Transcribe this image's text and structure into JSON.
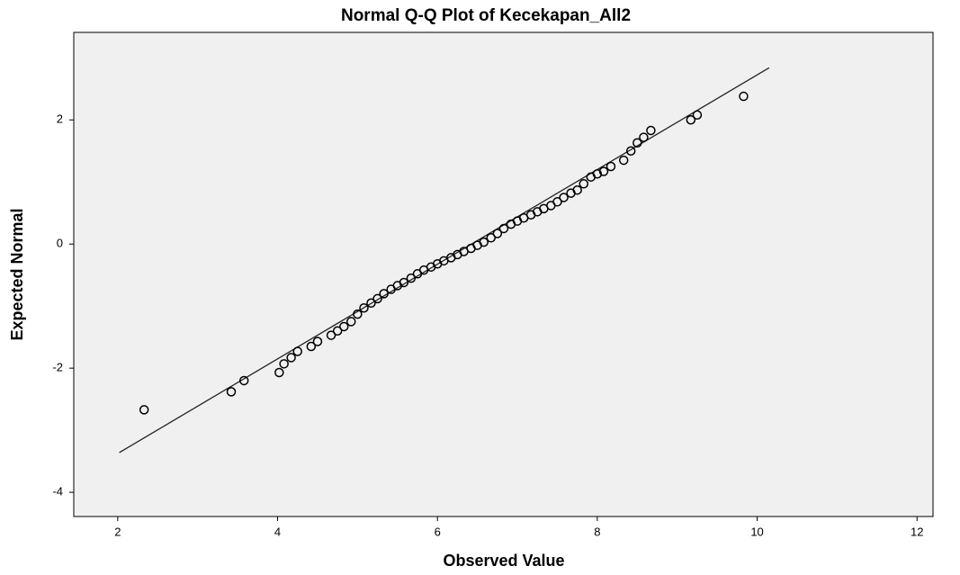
{
  "chart_data": {
    "type": "scatter",
    "title": "Normal Q-Q Plot of Kecekapan_All2",
    "xlabel": "Observed Value",
    "ylabel": "Expected Normal",
    "x": [
      2.33,
      3.42,
      3.58,
      4.02,
      4.08,
      4.17,
      4.25,
      4.42,
      4.5,
      4.67,
      4.75,
      4.83,
      4.92,
      5.0,
      5.08,
      5.17,
      5.25,
      5.33,
      5.42,
      5.5,
      5.58,
      5.67,
      5.75,
      5.83,
      5.92,
      6.0,
      6.08,
      6.17,
      6.25,
      6.33,
      6.42,
      6.5,
      6.58,
      6.67,
      6.75,
      6.83,
      6.92,
      7.0,
      7.08,
      7.17,
      7.25,
      7.33,
      7.42,
      7.5,
      7.58,
      7.67,
      7.75,
      7.83,
      7.92,
      8.0,
      8.08,
      8.17,
      8.33,
      8.42,
      8.5,
      8.58,
      8.67,
      9.17,
      9.25,
      9.83
    ],
    "values": [
      -2.67,
      -2.38,
      -2.2,
      -2.07,
      -1.93,
      -1.83,
      -1.73,
      -1.65,
      -1.57,
      -1.47,
      -1.4,
      -1.33,
      -1.25,
      -1.13,
      -1.03,
      -0.95,
      -0.88,
      -0.8,
      -0.73,
      -0.67,
      -0.62,
      -0.55,
      -0.48,
      -0.42,
      -0.37,
      -0.32,
      -0.27,
      -0.22,
      -0.17,
      -0.12,
      -0.07,
      -0.02,
      0.03,
      0.1,
      0.17,
      0.25,
      0.32,
      0.37,
      0.42,
      0.47,
      0.52,
      0.57,
      0.62,
      0.68,
      0.75,
      0.82,
      0.87,
      0.97,
      1.08,
      1.13,
      1.17,
      1.25,
      1.35,
      1.5,
      1.63,
      1.72,
      1.83,
      2.0,
      2.08,
      2.38
    ],
    "color": "#000000",
    "reference_line": {
      "x": [
        2.02,
        10.15
      ],
      "y": [
        -3.36,
        2.84
      ],
      "color": "#222222"
    },
    "xlim": [
      1.45,
      12.2
    ],
    "ylim": [
      -4.39,
      3.41
    ],
    "xticks": [
      2,
      4,
      6,
      8,
      10,
      12
    ],
    "yticks": [
      -4,
      -2,
      0,
      2
    ],
    "grid": false,
    "background": "#f0f0f0"
  }
}
